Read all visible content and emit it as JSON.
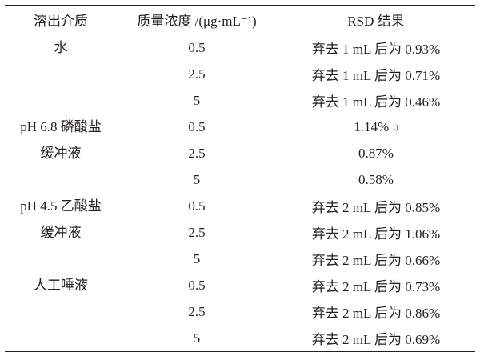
{
  "table": {
    "headers": {
      "medium": "溶出介质",
      "concentration": "质量浓度 /(μg·mL⁻¹)",
      "rsd": "RSD 结果"
    },
    "groups": [
      {
        "medium_lines": [
          "水"
        ],
        "rows": [
          {
            "conc": "0.5",
            "rsd": "弃去 1 mL 后为 0.93%"
          },
          {
            "conc": "2.5",
            "rsd": "弃去 1 mL 后为 0.71%"
          },
          {
            "conc": "5",
            "rsd": "弃去 1 mL 后为 0.46%"
          }
        ]
      },
      {
        "medium_lines": [
          "pH 6.8 磷酸盐",
          "缓冲液"
        ],
        "rows": [
          {
            "conc": "0.5",
            "rsd": "1.14%",
            "note": "1)"
          },
          {
            "conc": "2.5",
            "rsd": "0.87%"
          },
          {
            "conc": "5",
            "rsd": "0.58%"
          }
        ]
      },
      {
        "medium_lines": [
          "pH 4.5 乙酸盐",
          "缓冲液"
        ],
        "rows": [
          {
            "conc": "0.5",
            "rsd": "弃去 2 mL 后为 0.85%"
          },
          {
            "conc": "2.5",
            "rsd": "弃去 2 mL 后为 1.06%"
          },
          {
            "conc": "5",
            "rsd": "弃去 2 mL 后为 0.66%"
          }
        ]
      },
      {
        "medium_lines": [
          "人工唾液"
        ],
        "rows": [
          {
            "conc": "0.5",
            "rsd": "弃去 2 mL 后为 0.73%"
          },
          {
            "conc": "2.5",
            "rsd": "弃去 2 mL 后为 0.86%"
          },
          {
            "conc": "5",
            "rsd": "弃去 2 mL 后为 0.69%"
          }
        ]
      }
    ]
  }
}
